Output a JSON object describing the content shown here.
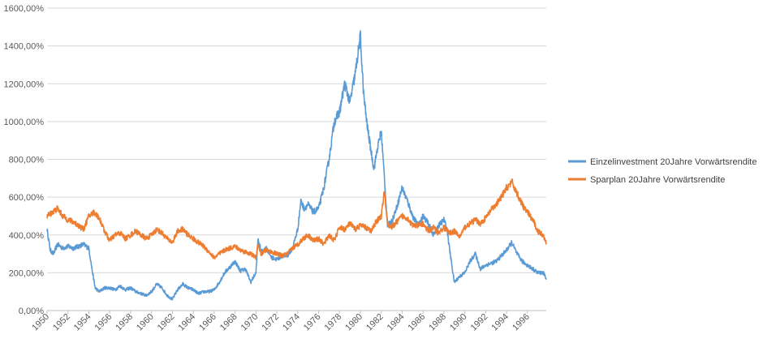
{
  "chart_data": {
    "type": "line",
    "title": "",
    "xlabel": "",
    "ylabel": "",
    "xlim": [
      1950,
      1997.8
    ],
    "ylim": [
      0,
      16
    ],
    "grid": true,
    "legend_position": "right",
    "y_ticks": [
      {
        "value": 0,
        "label": "0,00%"
      },
      {
        "value": 2,
        "label": "200,00%"
      },
      {
        "value": 4,
        "label": "400,00%"
      },
      {
        "value": 6,
        "label": "600,00%"
      },
      {
        "value": 8,
        "label": "800,00%"
      },
      {
        "value": 10,
        "label": "1000,00%"
      },
      {
        "value": 12,
        "label": "1200,00%"
      },
      {
        "value": 14,
        "label": "1400,00%"
      },
      {
        "value": 16,
        "label": "1600,00%"
      }
    ],
    "x_ticks": [
      "1950",
      "1952",
      "1954",
      "1956",
      "1958",
      "1960",
      "1962",
      "1964",
      "1966",
      "1968",
      "1970",
      "1972",
      "1974",
      "1976",
      "1978",
      "1980",
      "1982",
      "1984",
      "1986",
      "1988",
      "1990",
      "1992",
      "1994",
      "1996"
    ],
    "series": [
      {
        "name": "Einzelinvestment 20Jahre Vorwärtsrendite",
        "color": "#5b9bd5",
        "x": [
          1950.0,
          1950.3,
          1950.6,
          1951.0,
          1951.5,
          1952.0,
          1952.5,
          1953.0,
          1953.5,
          1954.0,
          1954.3,
          1954.6,
          1955.0,
          1955.5,
          1956.0,
          1956.5,
          1957.0,
          1957.5,
          1958.0,
          1958.5,
          1959.0,
          1959.5,
          1960.0,
          1960.5,
          1961.0,
          1961.5,
          1962.0,
          1962.5,
          1963.0,
          1963.5,
          1964.0,
          1964.5,
          1965.0,
          1965.5,
          1966.0,
          1966.5,
          1967.0,
          1967.5,
          1968.0,
          1968.5,
          1969.0,
          1969.5,
          1970.0,
          1970.2,
          1970.5,
          1971.0,
          1971.5,
          1972.0,
          1972.5,
          1973.0,
          1973.5,
          1974.0,
          1974.3,
          1974.6,
          1975.0,
          1975.5,
          1976.0,
          1976.5,
          1977.0,
          1977.5,
          1978.0,
          1978.5,
          1979.0,
          1979.5,
          1980.0,
          1980.3,
          1980.6,
          1981.0,
          1981.3,
          1981.6,
          1982.0,
          1982.3,
          1982.6,
          1983.0,
          1983.5,
          1984.0,
          1984.5,
          1985.0,
          1985.5,
          1986.0,
          1986.5,
          1987.0,
          1987.5,
          1988.0,
          1988.3,
          1988.6,
          1989.0,
          1989.5,
          1990.0,
          1990.5,
          1991.0,
          1991.5,
          1992.0,
          1992.5,
          1993.0,
          1993.5,
          1994.0,
          1994.5,
          1995.0,
          1995.5,
          1996.0,
          1996.5,
          1997.0,
          1997.5,
          1997.8
        ],
        "values": [
          4.3,
          3.2,
          3.0,
          3.5,
          3.3,
          3.4,
          3.3,
          3.4,
          3.5,
          3.3,
          2.2,
          1.2,
          1.0,
          1.2,
          1.2,
          1.1,
          1.3,
          1.1,
          1.2,
          1.0,
          0.9,
          0.8,
          1.0,
          1.4,
          1.2,
          0.8,
          0.6,
          1.1,
          1.4,
          1.2,
          1.1,
          0.9,
          1.0,
          1.0,
          1.1,
          1.5,
          2.0,
          2.3,
          2.6,
          2.1,
          2.2,
          1.5,
          2.0,
          3.8,
          3.1,
          3.3,
          2.8,
          2.7,
          2.9,
          2.9,
          3.3,
          4.3,
          5.8,
          5.4,
          5.6,
          5.2,
          5.4,
          6.5,
          8.0,
          10.0,
          10.5,
          12.0,
          11.0,
          12.5,
          14.5,
          11.5,
          10.0,
          8.5,
          7.5,
          8.5,
          9.5,
          7.0,
          4.5,
          4.7,
          5.5,
          6.5,
          5.8,
          5.0,
          4.5,
          5.0,
          4.6,
          4.0,
          4.5,
          4.8,
          4.3,
          3.0,
          1.5,
          1.8,
          2.0,
          2.6,
          3.0,
          2.2,
          2.4,
          2.5,
          2.6,
          2.9,
          3.2,
          3.6,
          3.0,
          2.6,
          2.4,
          2.2,
          2.0,
          2.0,
          1.7
        ]
      },
      {
        "name": "Sparplan 20Jahre Vorwärtsrendite",
        "color": "#ed7d31",
        "x": [
          1950.0,
          1950.5,
          1951.0,
          1951.5,
          1952.0,
          1952.5,
          1953.0,
          1953.5,
          1954.0,
          1954.5,
          1955.0,
          1955.5,
          1956.0,
          1956.5,
          1957.0,
          1957.5,
          1958.0,
          1958.5,
          1959.0,
          1959.5,
          1960.0,
          1960.5,
          1961.0,
          1961.5,
          1962.0,
          1962.5,
          1963.0,
          1963.5,
          1964.0,
          1964.5,
          1965.0,
          1965.5,
          1966.0,
          1966.5,
          1967.0,
          1967.5,
          1968.0,
          1968.5,
          1969.0,
          1969.5,
          1970.0,
          1970.2,
          1970.5,
          1971.0,
          1971.5,
          1972.0,
          1972.5,
          1973.0,
          1973.5,
          1974.0,
          1974.5,
          1975.0,
          1975.5,
          1976.0,
          1976.5,
          1977.0,
          1977.5,
          1978.0,
          1978.5,
          1979.0,
          1979.5,
          1980.0,
          1980.5,
          1981.0,
          1981.5,
          1982.0,
          1982.3,
          1982.6,
          1983.0,
          1983.5,
          1984.0,
          1984.5,
          1985.0,
          1985.5,
          1986.0,
          1986.5,
          1987.0,
          1987.5,
          1988.0,
          1988.5,
          1989.0,
          1989.5,
          1990.0,
          1990.5,
          1991.0,
          1991.5,
          1992.0,
          1992.5,
          1993.0,
          1993.5,
          1994.0,
          1994.5,
          1995.0,
          1995.5,
          1996.0,
          1996.5,
          1997.0,
          1997.5,
          1997.8
        ],
        "values": [
          5.0,
          5.2,
          5.4,
          5.0,
          4.8,
          4.7,
          4.5,
          4.3,
          5.0,
          5.2,
          4.9,
          4.2,
          3.7,
          4.0,
          4.1,
          3.8,
          4.0,
          4.2,
          4.0,
          3.8,
          4.0,
          4.3,
          4.1,
          3.8,
          3.6,
          4.2,
          4.3,
          4.0,
          3.8,
          3.6,
          3.4,
          3.1,
          2.8,
          3.0,
          3.2,
          3.3,
          3.4,
          3.2,
          3.1,
          3.0,
          2.8,
          3.5,
          3.0,
          3.2,
          3.1,
          3.0,
          2.9,
          3.0,
          3.3,
          3.5,
          3.8,
          4.0,
          3.7,
          3.8,
          3.5,
          4.0,
          3.7,
          4.4,
          4.3,
          4.6,
          4.3,
          4.5,
          4.4,
          4.2,
          4.7,
          5.0,
          6.3,
          4.6,
          4.4,
          4.7,
          5.0,
          4.9,
          4.5,
          4.5,
          4.6,
          4.2,
          4.4,
          4.1,
          4.4,
          4.1,
          4.2,
          3.9,
          4.4,
          4.6,
          4.8,
          4.6,
          4.9,
          5.3,
          5.6,
          6.0,
          6.5,
          6.8,
          6.2,
          5.6,
          5.2,
          4.8,
          4.2,
          4.0,
          3.6
        ]
      }
    ]
  }
}
